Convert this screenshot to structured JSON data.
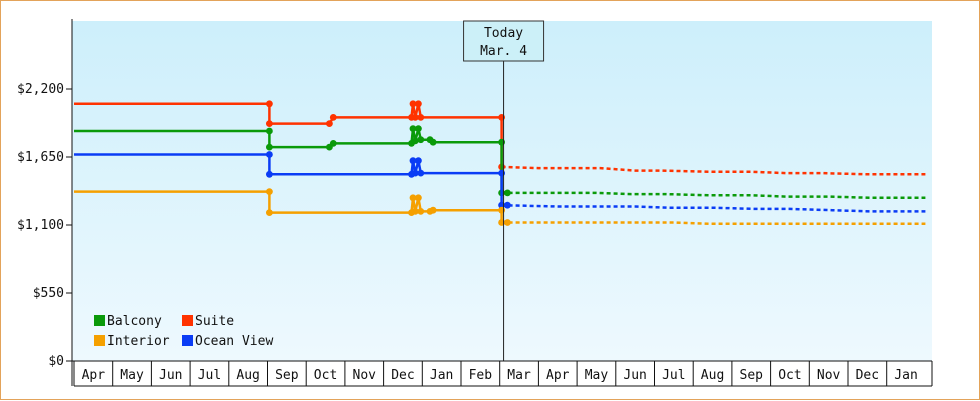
{
  "chart_data": {
    "type": "line",
    "title": "",
    "xlabel": "",
    "ylabel": "",
    "ylim": [
      0,
      2750
    ],
    "y_ticks": [
      {
        "value": 0,
        "label": "$0"
      },
      {
        "value": 550,
        "label": "$550"
      },
      {
        "value": 1100,
        "label": "$1,100"
      },
      {
        "value": 1650,
        "label": "$1,650"
      },
      {
        "value": 2200,
        "label": "$2,200"
      }
    ],
    "months": [
      "Apr",
      "May",
      "Jun",
      "Jul",
      "Aug",
      "Sep",
      "Oct",
      "Nov",
      "Dec",
      "Jan",
      "Feb",
      "Mar",
      "Apr",
      "May",
      "Jun",
      "Jul",
      "Aug",
      "Sep",
      "Oct",
      "Nov",
      "Dec",
      "Jan"
    ],
    "today": {
      "line1": "Today",
      "line2": "Mar. 4",
      "x": 11.1
    },
    "background": {
      "top": "#cdeffb",
      "bottom": "#eef9fe"
    },
    "legend": {
      "placement": "bottom-left",
      "items": [
        {
          "name": "Balcony",
          "color": "#0a9a0a"
        },
        {
          "name": "Suite",
          "color": "#ff3300"
        },
        {
          "name": "Interior",
          "color": "#f5a000"
        },
        {
          "name": "Ocean View",
          "color": "#0a3cf5"
        }
      ]
    },
    "series": [
      {
        "name": "Suite",
        "color": "#ff3300",
        "history": [
          [
            0,
            2080
          ],
          [
            5.05,
            2080
          ],
          [
            5.05,
            1920
          ],
          [
            6.6,
            1920
          ],
          [
            6.7,
            1970
          ],
          [
            8.72,
            1970
          ],
          [
            8.76,
            2080
          ],
          [
            8.82,
            1970
          ],
          [
            8.9,
            2080
          ],
          [
            8.96,
            1970
          ],
          [
            11.05,
            1970
          ],
          [
            11.05,
            1570
          ]
        ],
        "projection": [
          [
            11.05,
            1570
          ],
          [
            12,
            1560
          ],
          [
            13.6,
            1560
          ],
          [
            14.5,
            1540
          ],
          [
            15.2,
            1540
          ],
          [
            16.5,
            1530
          ],
          [
            17.5,
            1530
          ],
          [
            18.4,
            1520
          ],
          [
            19.3,
            1520
          ],
          [
            20.5,
            1510
          ],
          [
            22,
            1510
          ]
        ]
      },
      {
        "name": "Balcony",
        "color": "#0a9a0a",
        "history": [
          [
            0,
            1860
          ],
          [
            5.05,
            1860
          ],
          [
            5.05,
            1730
          ],
          [
            6.6,
            1730
          ],
          [
            6.7,
            1760
          ],
          [
            8.72,
            1760
          ],
          [
            8.76,
            1880
          ],
          [
            8.82,
            1780
          ],
          [
            8.9,
            1880
          ],
          [
            8.96,
            1790
          ],
          [
            9.2,
            1790
          ],
          [
            9.28,
            1770
          ],
          [
            11.05,
            1770
          ],
          [
            11.05,
            1360
          ],
          [
            11.2,
            1360
          ]
        ],
        "projection": [
          [
            11.05,
            1360
          ],
          [
            13.5,
            1360
          ],
          [
            14.4,
            1350
          ],
          [
            15.3,
            1350
          ],
          [
            16.4,
            1340
          ],
          [
            17.5,
            1340
          ],
          [
            18.4,
            1330
          ],
          [
            19.5,
            1330
          ],
          [
            20.6,
            1320
          ],
          [
            22,
            1320
          ]
        ]
      },
      {
        "name": "Ocean View",
        "color": "#0a3cf5",
        "history": [
          [
            0,
            1670
          ],
          [
            5.05,
            1670
          ],
          [
            5.05,
            1510
          ],
          [
            8.72,
            1510
          ],
          [
            8.76,
            1620
          ],
          [
            8.82,
            1520
          ],
          [
            8.9,
            1620
          ],
          [
            8.96,
            1520
          ],
          [
            11.05,
            1520
          ],
          [
            11.05,
            1260
          ],
          [
            11.2,
            1260
          ]
        ],
        "projection": [
          [
            11.05,
            1260
          ],
          [
            12.5,
            1250
          ],
          [
            14.5,
            1250
          ],
          [
            15.4,
            1240
          ],
          [
            16.5,
            1240
          ],
          [
            17.6,
            1230
          ],
          [
            18.5,
            1230
          ],
          [
            19.6,
            1220
          ],
          [
            20.6,
            1210
          ],
          [
            22,
            1210
          ]
        ]
      },
      {
        "name": "Interior",
        "color": "#f5a000",
        "history": [
          [
            0,
            1370
          ],
          [
            5.05,
            1370
          ],
          [
            5.05,
            1200
          ],
          [
            8.72,
            1200
          ],
          [
            8.76,
            1320
          ],
          [
            8.82,
            1210
          ],
          [
            8.9,
            1320
          ],
          [
            8.96,
            1210
          ],
          [
            9.2,
            1210
          ],
          [
            9.28,
            1220
          ],
          [
            11.05,
            1220
          ],
          [
            11.05,
            1120
          ],
          [
            11.2,
            1120
          ]
        ],
        "projection": [
          [
            11.05,
            1120
          ],
          [
            15.5,
            1120
          ],
          [
            16.4,
            1110
          ],
          [
            18.5,
            1110
          ],
          [
            20.5,
            1110
          ],
          [
            22,
            1110
          ]
        ]
      }
    ]
  }
}
